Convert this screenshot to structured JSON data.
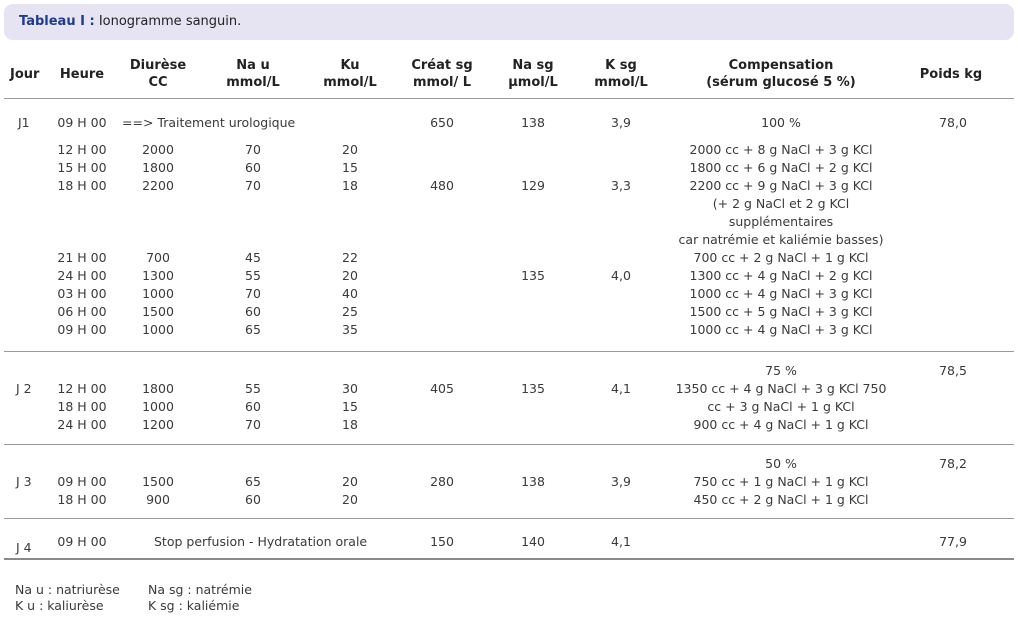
{
  "table": {
    "title_label": "Tableau I :",
    "title_text": "Ionogramme sanguin.",
    "headers": {
      "jour": "Jour",
      "heure": "Heure",
      "diurese": [
        "Diurèse",
        "CC"
      ],
      "nau": [
        "Na u",
        "mmol/L"
      ],
      "ku": [
        "Ku",
        "mmol/L"
      ],
      "creat": [
        "Créat sg",
        "mmol/ L"
      ],
      "nasg": [
        "Na sg",
        "µmol/L"
      ],
      "ksg": [
        "K sg",
        "mmol/L"
      ],
      "comp": [
        "Compensation",
        "(sérum glucosé 5 %)"
      ],
      "poids": "Poids kg"
    },
    "j1": {
      "jour": "J1",
      "r0": {
        "heure": "09 H 00",
        "note": "==> Traitement urologique",
        "creat": "650",
        "nasg": "138",
        "ksg": "3,9",
        "comp": "100 %",
        "poids": "78,0"
      },
      "rows": [
        {
          "heure": "12 H 00",
          "diurese": "2000",
          "nau": "70",
          "ku": "20",
          "comp": "2000 cc + 8 g NaCl + 3 g KCl"
        },
        {
          "heure": "15 H 00",
          "diurese": "1800",
          "nau": "60",
          "ku": "15",
          "comp": "1800 cc + 6 g NaCl + 2 g KCl"
        },
        {
          "heure": "18 H 00",
          "diurese": "2200",
          "nau": "70",
          "ku": "18",
          "creat": "480",
          "nasg": "129",
          "ksg": "3,3",
          "comp": "2200 cc + 9 g NaCl + 3 g KCl"
        }
      ],
      "extra": [
        "(+ 2 g NaCl et 2 g KCl",
        "supplémentaires",
        "car natrémie et kaliémie basses)"
      ],
      "rows2": [
        {
          "heure": "21 H 00",
          "diurese": "700",
          "nau": "45",
          "ku": "22",
          "comp": "700 cc + 2 g NaCl + 1 g KCl"
        },
        {
          "heure": "24 H 00",
          "diurese": "1300",
          "nau": "55",
          "ku": "20",
          "nasg": "135",
          "ksg": "4,0",
          "comp": "1300 cc + 4 g NaCl + 2 g KCl"
        },
        {
          "heure": "03 H 00",
          "diurese": "1000",
          "nau": "70",
          "ku": "40",
          "comp": "1000 cc + 4 g NaCl + 3 g KCl"
        },
        {
          "heure": "06 H 00",
          "diurese": "1500",
          "nau": "60",
          "ku": "25",
          "comp": "1500 cc + 5 g NaCl + 3 g KCl"
        },
        {
          "heure": "09 H 00",
          "diurese": "1000",
          "nau": "65",
          "ku": "35",
          "comp": "1000 cc + 4 g NaCl + 3 g KCl"
        }
      ]
    },
    "j2": {
      "jour": "J 2",
      "pct": "75 %",
      "poids": "78,5",
      "creat": "405",
      "nasg": "135",
      "ksg": "4,1",
      "rows": [
        {
          "heure": "12 H 00",
          "diurese": "1800",
          "nau": "55",
          "ku": "30",
          "comp": "1350 cc + 4 g NaCl + 3 g KCl 750"
        },
        {
          "heure": "18 H 00",
          "diurese": "1000",
          "nau": "60",
          "ku": "15",
          "comp": "cc + 3 g NaCl + 1 g KCl"
        },
        {
          "heure": "24 H 00",
          "diurese": "1200",
          "nau": "70",
          "ku": "18",
          "comp": "900 cc + 4 g NaCl + 1 g KCl"
        }
      ]
    },
    "j3": {
      "jour": "J 3",
      "pct": "50 %",
      "poids": "78,2",
      "creat": "280",
      "nasg": "138",
      "ksg": "3,9",
      "rows": [
        {
          "heure": "09 H 00",
          "diurese": "1500",
          "nau": "65",
          "ku": "20",
          "comp": "750 cc + 1 g NaCl + 1 g KCl"
        },
        {
          "heure": "18 H 00",
          "diurese": "900",
          "nau": "60",
          "ku": "20",
          "comp": "450 cc + 2 g NaCl + 1 g KCl"
        }
      ]
    },
    "j4": {
      "jour": "J 4",
      "heure": "09 H 00",
      "note": "Stop perfusion - Hydratation orale",
      "creat": "150",
      "nasg": "140",
      "ksg": "4,1",
      "poids": "77,9"
    }
  },
  "legend": [
    {
      "a": "Na u : natriurèse",
      "b": "Na sg : natrémie"
    },
    {
      "a": "K u : kaliurèse",
      "b": "K sg : kaliémie"
    }
  ]
}
